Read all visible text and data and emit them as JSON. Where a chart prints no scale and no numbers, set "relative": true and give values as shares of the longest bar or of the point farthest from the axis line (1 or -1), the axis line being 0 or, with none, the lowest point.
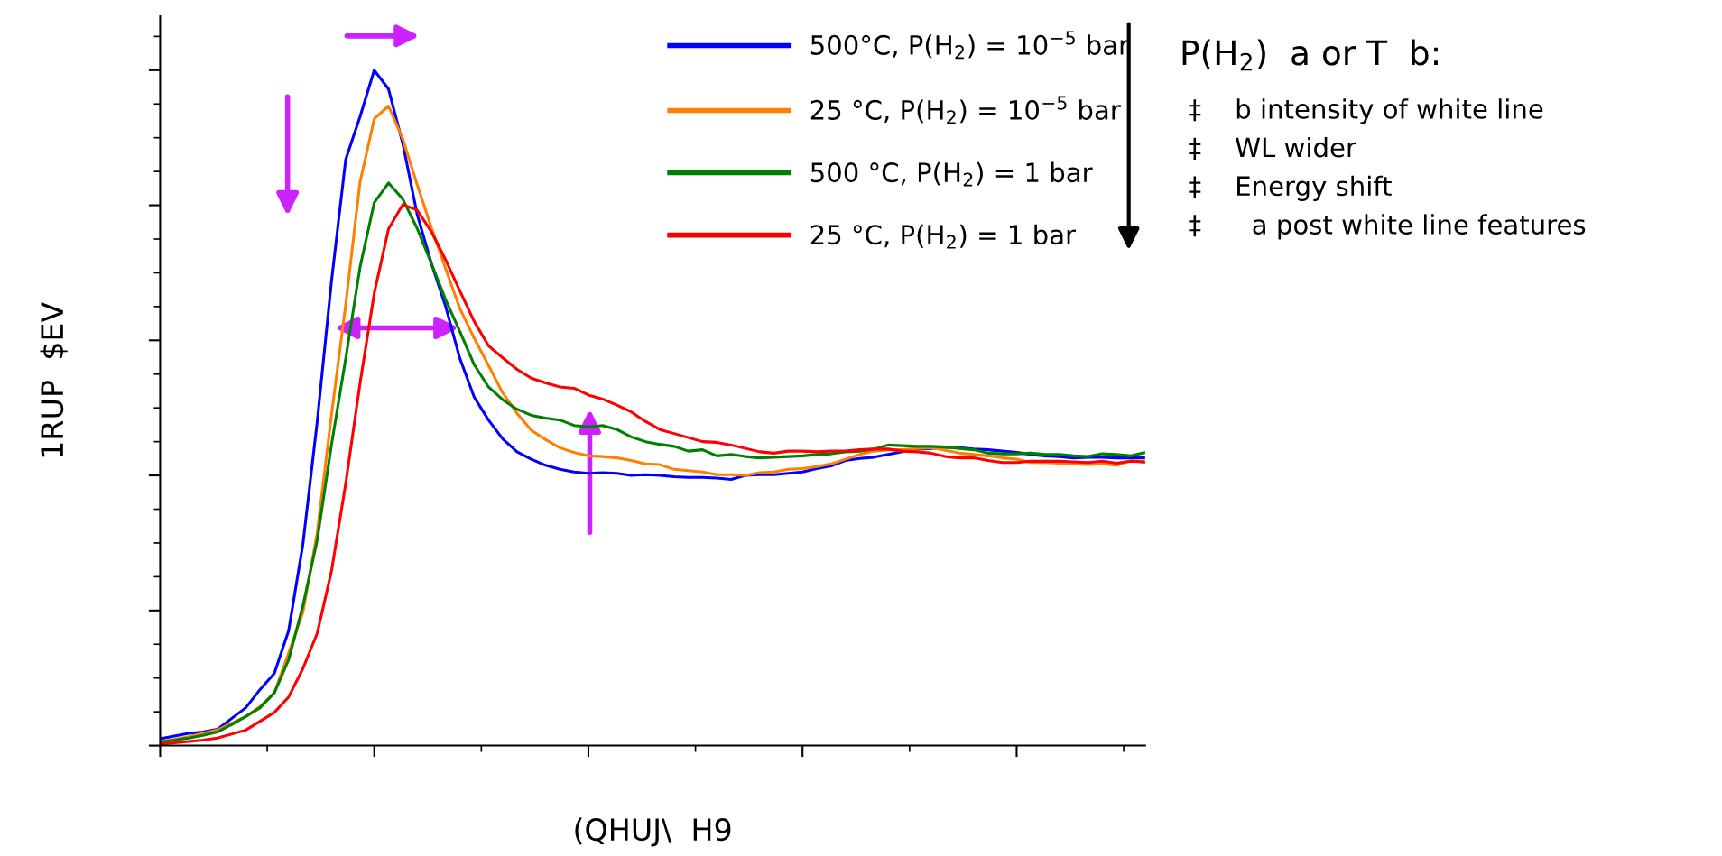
{
  "chart_data": {
    "type": "line",
    "relative": true,
    "xlabel": "(QHUJ\\  H9",
    "ylabel": "1RUP  $EV",
    "categories": [
      null,
      null,
      null,
      null,
      null,
      null,
      null,
      null,
      null,
      null,
      null,
      null,
      null,
      null,
      null,
      null,
      null,
      null,
      null,
      null,
      null,
      null,
      null,
      null,
      null,
      null,
      null,
      null,
      null,
      null,
      null,
      null,
      null,
      null,
      null,
      null,
      null,
      null,
      null,
      null,
      null,
      null,
      null,
      null,
      null,
      null,
      null,
      null,
      null,
      null,
      null,
      null,
      null,
      null,
      null,
      null,
      null,
      null,
      null,
      null,
      null,
      null,
      null,
      null,
      null,
      null,
      null,
      null,
      null,
      null
    ],
    "legend": "top right",
    "grid": false,
    "series": [
      {
        "name": "500°C, P(H$_{2}$) = 10$^{−5}$ bar",
        "color": "#0000ff",
        "values": [
          0.01,
          0.014,
          0.018,
          0.02,
          0.024,
          0.04,
          0.056,
          0.083,
          0.107,
          0.17,
          0.298,
          0.479,
          0.687,
          0.868,
          0.931,
          1.0,
          0.972,
          0.891,
          0.787,
          0.714,
          0.65,
          0.573,
          0.516,
          0.482,
          0.454,
          0.435,
          0.424,
          0.415,
          0.409,
          0.405,
          0.403,
          0.404,
          0.403,
          0.4,
          0.401,
          0.4,
          0.398,
          0.397,
          0.397,
          0.396,
          0.394,
          0.4,
          0.401,
          0.401,
          0.403,
          0.405,
          0.41,
          0.414,
          0.422,
          0.425,
          0.427,
          0.431,
          0.435,
          0.439,
          0.44,
          0.442,
          0.441,
          0.439,
          0.438,
          0.436,
          0.434,
          0.431,
          0.429,
          0.428,
          0.426,
          0.427,
          0.427,
          0.426,
          0.426,
          0.426
        ]
      },
      {
        "name": "25 °C, P(H$_{2}$) = 10$^{−5}$ bar",
        "color": "#ff8000",
        "values": [
          0.006,
          0.009,
          0.013,
          0.018,
          0.023,
          0.033,
          0.043,
          0.058,
          0.078,
          0.137,
          0.197,
          0.315,
          0.489,
          0.653,
          0.834,
          0.928,
          0.947,
          0.898,
          0.831,
          0.767,
          0.706,
          0.647,
          0.603,
          0.563,
          0.522,
          0.492,
          0.467,
          0.453,
          0.441,
          0.434,
          0.429,
          0.428,
          0.426,
          0.422,
          0.417,
          0.416,
          0.409,
          0.407,
          0.405,
          0.401,
          0.401,
          0.4,
          0.404,
          0.405,
          0.409,
          0.41,
          0.413,
          0.417,
          0.424,
          0.431,
          0.436,
          0.438,
          0.438,
          0.44,
          0.441,
          0.437,
          0.433,
          0.431,
          0.429,
          0.426,
          0.424,
          0.419,
          0.419,
          0.418,
          0.417,
          0.416,
          0.417,
          0.415,
          0.422,
          0.42
        ]
      },
      {
        "name": "500 °C, P(H$_{2}$) = 1 bar",
        "color": "#008000",
        "values": [
          0.005,
          0.008,
          0.011,
          0.015,
          0.02,
          0.031,
          0.043,
          0.056,
          0.078,
          0.127,
          0.207,
          0.304,
          0.445,
          0.573,
          0.708,
          0.804,
          0.833,
          0.809,
          0.766,
          0.714,
          0.66,
          0.613,
          0.564,
          0.531,
          0.512,
          0.498,
          0.489,
          0.485,
          0.482,
          0.474,
          0.472,
          0.474,
          0.468,
          0.457,
          0.45,
          0.446,
          0.443,
          0.436,
          0.438,
          0.429,
          0.431,
          0.428,
          0.426,
          0.427,
          0.428,
          0.429,
          0.431,
          0.432,
          0.435,
          0.436,
          0.439,
          0.445,
          0.444,
          0.443,
          0.443,
          0.442,
          0.44,
          0.438,
          0.433,
          0.432,
          0.432,
          0.433,
          0.431,
          0.431,
          0.429,
          0.428,
          0.432,
          0.431,
          0.429,
          0.434
        ]
      },
      {
        "name": "25 °C, P(H$_{2}$) = 1 bar",
        "color": "#ff0000",
        "values": [
          0.002,
          0.004,
          0.006,
          0.008,
          0.011,
          0.017,
          0.023,
          0.036,
          0.049,
          0.072,
          0.114,
          0.166,
          0.258,
          0.388,
          0.536,
          0.67,
          0.765,
          0.801,
          0.793,
          0.761,
          0.719,
          0.673,
          0.628,
          0.592,
          0.574,
          0.557,
          0.544,
          0.537,
          0.531,
          0.529,
          0.519,
          0.513,
          0.504,
          0.494,
          0.48,
          0.468,
          0.462,
          0.456,
          0.45,
          0.449,
          0.445,
          0.44,
          0.435,
          0.433,
          0.436,
          0.436,
          0.435,
          0.436,
          0.436,
          0.438,
          0.439,
          0.439,
          0.436,
          0.435,
          0.433,
          0.428,
          0.426,
          0.426,
          0.422,
          0.419,
          0.419,
          0.421,
          0.421,
          0.421,
          0.42,
          0.419,
          0.421,
          0.418,
          0.421,
          0.42
        ]
      }
    ],
    "annotations": [
      "P(H$_{2}$)  a or T  b:",
      "‡    b intensity of white line",
      "‡    WL wider",
      "‡    Energy shift",
      "‡      a post white line features"
    ]
  }
}
